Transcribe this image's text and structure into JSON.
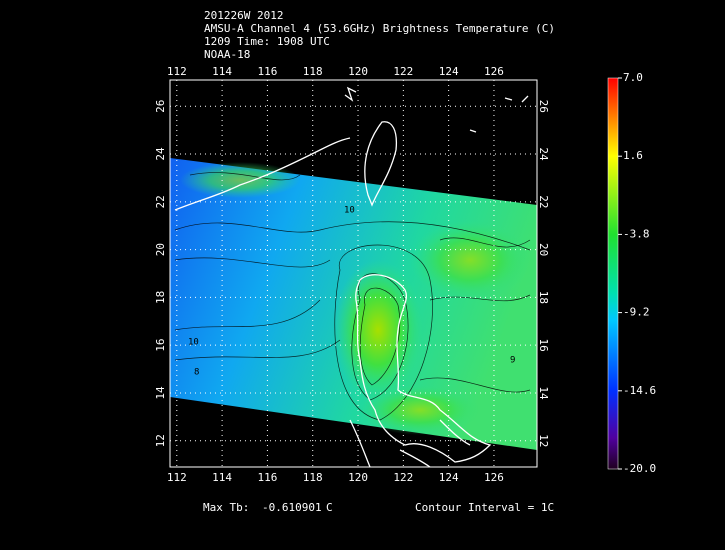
{
  "header": {
    "lines": [
      "201226W 2012",
      "AMSU-A Channel 4 (53.6GHz) Brightness Temperature (C)",
      "1209 Time: 1908 UTC",
      "NOAA-18"
    ]
  },
  "map": {
    "xlim": [
      111.7,
      127.9
    ],
    "ylim": [
      10.9,
      27.1
    ],
    "xticks": [
      112,
      114,
      116,
      118,
      120,
      122,
      124,
      126
    ],
    "yticks": [
      12,
      14,
      16,
      18,
      20,
      22,
      24,
      26
    ],
    "grid": true,
    "contour_labels": [
      "10",
      "10",
      "8",
      "9"
    ]
  },
  "colorbar": {
    "lim": [
      -20,
      7
    ],
    "ticks": [
      {
        "value": 7,
        "label": "7.0"
      },
      1.6,
      -3.8,
      -9.2,
      -14.6,
      {
        "value": -20,
        "label": "-20.0"
      }
    ]
  },
  "footer": {
    "max_label": "Max Tb:",
    "max_value": "-0.610901",
    "max_unit": "C",
    "contour": "Contour Interval = 1C"
  }
}
